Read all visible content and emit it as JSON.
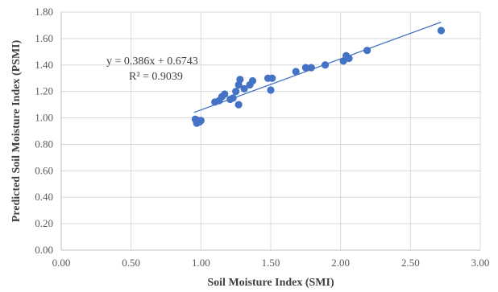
{
  "chart_data": {
    "type": "scatter",
    "xlabel": "Soil Moisture Index (SMI)",
    "ylabel": "Predicted Soil Moisture Index (PSMI)",
    "xlim": [
      0,
      3
    ],
    "ylim": [
      0,
      1.8
    ],
    "xticks": [
      "0.00",
      "0.50",
      "1.00",
      "1.50",
      "2.00",
      "2.50",
      "3.00"
    ],
    "yticks": [
      "0.00",
      "0.20",
      "0.40",
      "0.60",
      "0.80",
      "1.00",
      "1.20",
      "1.40",
      "1.60",
      "1.80"
    ],
    "grid": true,
    "marker_color": "#4472C4",
    "trendline": {
      "slope": 0.386,
      "intercept": 0.6743,
      "x_range": [
        0.95,
        2.72
      ],
      "equation": "y = 0.386x + 0.6743",
      "r_squared": "R² = 0.9039"
    },
    "points": [
      {
        "x": 0.96,
        "y": 0.99
      },
      {
        "x": 0.97,
        "y": 0.96
      },
      {
        "x": 0.98,
        "y": 0.98
      },
      {
        "x": 0.99,
        "y": 0.97
      },
      {
        "x": 1.0,
        "y": 0.98
      },
      {
        "x": 1.1,
        "y": 1.12
      },
      {
        "x": 1.13,
        "y": 1.13
      },
      {
        "x": 1.15,
        "y": 1.16
      },
      {
        "x": 1.17,
        "y": 1.18
      },
      {
        "x": 1.21,
        "y": 1.14
      },
      {
        "x": 1.23,
        "y": 1.15
      },
      {
        "x": 1.25,
        "y": 1.2
      },
      {
        "x": 1.27,
        "y": 1.25
      },
      {
        "x": 1.28,
        "y": 1.29
      },
      {
        "x": 1.27,
        "y": 1.1
      },
      {
        "x": 1.31,
        "y": 1.22
      },
      {
        "x": 1.35,
        "y": 1.25
      },
      {
        "x": 1.37,
        "y": 1.28
      },
      {
        "x": 1.48,
        "y": 1.3
      },
      {
        "x": 1.5,
        "y": 1.21
      },
      {
        "x": 1.51,
        "y": 1.3
      },
      {
        "x": 1.68,
        "y": 1.35
      },
      {
        "x": 1.75,
        "y": 1.38
      },
      {
        "x": 1.79,
        "y": 1.38
      },
      {
        "x": 1.89,
        "y": 1.4
      },
      {
        "x": 2.02,
        "y": 1.43
      },
      {
        "x": 2.04,
        "y": 1.47
      },
      {
        "x": 2.06,
        "y": 1.45
      },
      {
        "x": 2.19,
        "y": 1.51
      },
      {
        "x": 2.72,
        "y": 1.66
      }
    ]
  }
}
